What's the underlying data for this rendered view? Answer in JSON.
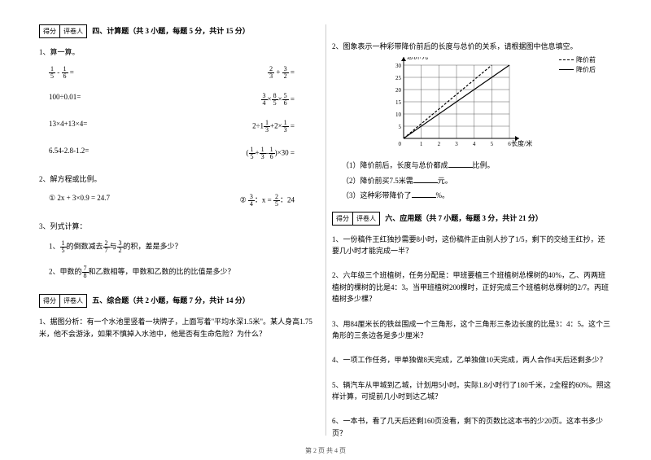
{
  "scorebox": {
    "score": "得分",
    "grader": "评卷人"
  },
  "sec4": {
    "title": "四、计算题（共 3 小题，每题 5 分，共计 15 分）",
    "q1": "1、算一算。",
    "eq1a_l": {
      "n": "1",
      "d": "5"
    },
    "eq1a_op": " - ",
    "eq1a_r": {
      "n": "1",
      "d": "6"
    },
    "eq1a_eq": " =",
    "eq1b_l": {
      "n": "2",
      "d": "3"
    },
    "eq1b_op": " + ",
    "eq1b_r": {
      "n": "3",
      "d": "2"
    },
    "eq1b_eq": " =",
    "eq2a": "100÷0.01=",
    "eq2b_1": {
      "n": "3",
      "d": "4"
    },
    "eq2b_op1": "×",
    "eq2b_2": {
      "n": "8",
      "d": "5"
    },
    "eq2b_op2": "×",
    "eq2b_3": {
      "n": "5",
      "d": "6"
    },
    "eq2b_eq": " =",
    "eq3a": "13×4+13×4=",
    "eq3b_pre": "2÷1",
    "eq3b_1": {
      "n": "1",
      "d": "3"
    },
    "eq3b_op": "+2×",
    "eq3b_2": {
      "n": "1",
      "d": "3"
    },
    "eq3b_eq": " =",
    "eq4a": "6.54-2.8-1.2=",
    "eq4b_open": "(",
    "eq4b_1": {
      "n": "1",
      "d": "5"
    },
    "eq4b_op1": "+",
    "eq4b_2": {
      "n": "1",
      "d": "3"
    },
    "eq4b_op2": "-",
    "eq4b_3": {
      "n": "1",
      "d": "6"
    },
    "eq4b_close": ")×30 =",
    "q2": "2、解方程或比例。",
    "q2a": "① 2x + 3×0.9 = 24.7",
    "q2b_pre": "② ",
    "q2b_1": {
      "n": "3",
      "d": "4"
    },
    "q2b_mid": "：x = ",
    "q2b_2": {
      "n": "2",
      "d": "5"
    },
    "q2b_post": "：24",
    "q3": "3、列式计算：",
    "q3a_pre": "1、",
    "q3a_1": {
      "n": "1",
      "d": "5"
    },
    "q3a_mid": "的倒数减去",
    "q3a_2": {
      "n": "2",
      "d": "7"
    },
    "q3a_mid2": "与",
    "q3a_3": {
      "n": "3",
      "d": "2"
    },
    "q3a_post": "的积，差是多少？",
    "q3b_pre": "2、甲数的",
    "q3b_1": {
      "n": "7",
      "d": "8"
    },
    "q3b_post": "和乙数相等，甲数和乙数的比的比值是多少？"
  },
  "sec5": {
    "title": "五、综合题（共 2 小题，每题 7 分，共计 14 分）",
    "q1": "1、据图分析：有一个水池里竖着一块牌子，上面写着\"平均水深1.5米\"。某人身高1.75米，他不会游泳，如果不慎掉入水池中，他是否有生命危险？为什么？"
  },
  "sec5r": {
    "q2": "2、图象表示一种彩带降价前后的长度与总价的关系，请根据图中信息填空。",
    "axis_y": "总价/元",
    "axis_x": "长度/米",
    "legend_before": "降价前",
    "legend_after": "降价后",
    "xticks": [
      "0",
      "1",
      "2",
      "3",
      "4",
      "5",
      "6"
    ],
    "yticks": [
      "5",
      "10",
      "15",
      "20",
      "25",
      "30"
    ],
    "sub1": "（1）降价前后，长度与总价都成",
    "sub1_post": "比例。",
    "sub2": "（2）降价前买7.5米需",
    "sub2_post": "元。",
    "sub3": "（3）这种彩带降价了",
    "sub3_post": "%。",
    "chart_style": {
      "width": 180,
      "height": 110,
      "grid_color": "#333333",
      "before_line": "dashed",
      "after_line": "solid",
      "x_max": 6,
      "y_max": 30,
      "before_slope": 6,
      "after_slope": 5
    }
  },
  "sec6": {
    "title": "六、应用题（共 7 小题，每题 3 分，共计 21 分）",
    "q1": "1、一份稿件王红独抄需要8小时，这份稿件正由别人抄了1/5，剩下的交给王红抄，还要几小时才能完成一半？",
    "q2": "2、六年级三个班植树，任务分配是：甲班要植三个班植树总棵树的40%，乙、丙两班植树的棵树的比是4：3。当甲班植树200棵时，正好完成三个班植树总棵树的2/7。丙班植树多少棵？",
    "q3": "3、用84厘米长的铁丝围成一个三角形，这个三角形三条边长度的比是3：4：5。这个三角形的三条边各是多少厘米？",
    "q4": "4、一项工作任务，甲单独做8天完成，乙单独做10天完成，两人合作4天后还剩多少？",
    "q5": "5、辆汽车从甲城到乙城，计划用5小时。实际1.8小时行了180千米，2全程的60%。照这样计算，可提前几小时到达乙城？",
    "q6": "6、一本书，看了几天后还剩160页没看，剩下的页数比这本书的少20页。这本书多少页？"
  },
  "footer": "第 2 页 共 4 页"
}
